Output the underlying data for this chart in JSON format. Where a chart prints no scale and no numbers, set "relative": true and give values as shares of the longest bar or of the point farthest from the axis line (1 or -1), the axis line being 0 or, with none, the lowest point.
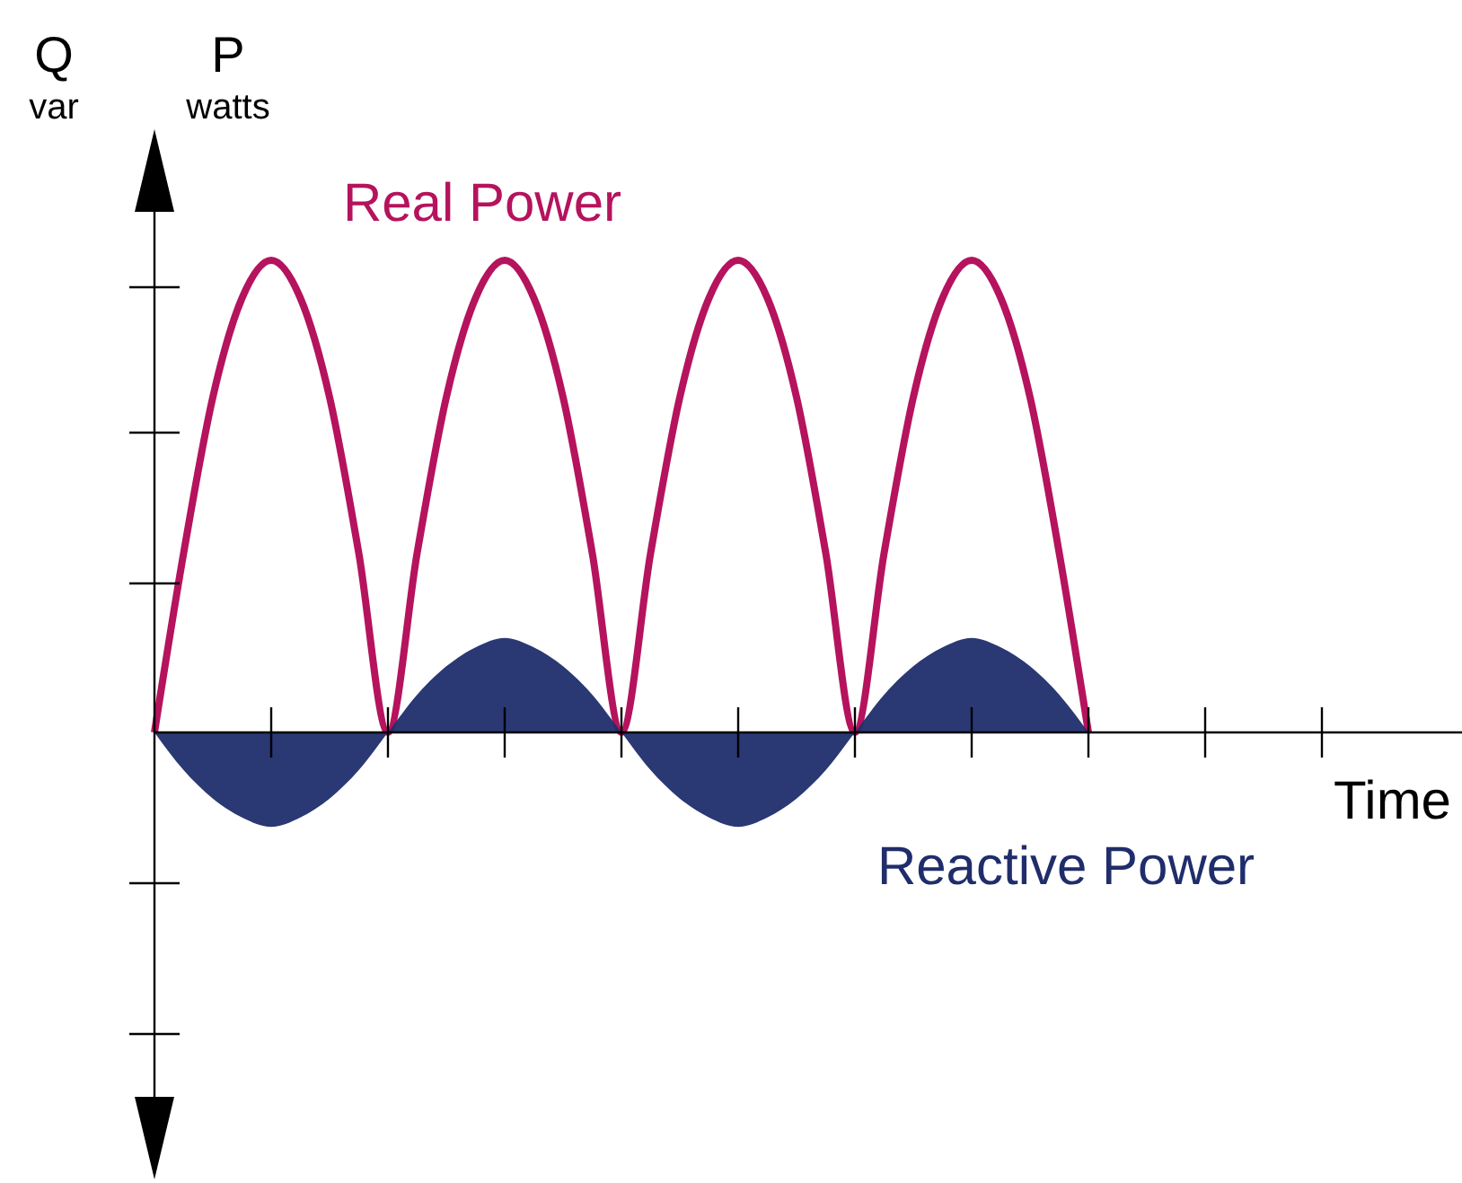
{
  "chart_data": {
    "type": "line",
    "relative": true,
    "xlabel": "Time",
    "ylabel": "P watts",
    "annotations": [
      "Q var"
    ],
    "categories": [
      null,
      null,
      null,
      null,
      null,
      null,
      null,
      null,
      null,
      null,
      null,
      null,
      null,
      null,
      null,
      null,
      null,
      null,
      null,
      null,
      null,
      null,
      null,
      null,
      null,
      null,
      null,
      null,
      null,
      null,
      null,
      null,
      null,
      null,
      null,
      null,
      null,
      null,
      null,
      null,
      null,
      null,
      null,
      null
    ],
    "series": [
      {
        "name": "Real Power",
        "color": "#b5135d",
        "values": [
          0,
          0.38,
          0.71,
          0.92,
          1,
          0.92,
          0.71,
          0.38,
          0,
          0.38,
          0.71,
          0.92,
          1,
          0.92,
          0.71,
          0.38,
          0,
          0.38,
          0.71,
          0.92,
          1,
          0.92,
          0.71,
          0.38,
          0,
          0.38,
          0.71,
          0.92,
          1,
          0.92,
          0.71,
          0.38,
          0,
          null,
          null,
          null,
          null,
          null,
          null,
          null,
          null,
          null,
          null,
          null
        ]
      },
      {
        "name": "Reactive Power",
        "type": "area",
        "color": "#1f2d6b",
        "values": [
          0,
          -0.08,
          -0.14,
          -0.18,
          -0.2,
          -0.18,
          -0.14,
          -0.08,
          0,
          0.08,
          0.14,
          0.18,
          0.2,
          0.18,
          0.14,
          0.08,
          0,
          -0.08,
          -0.14,
          -0.18,
          -0.2,
          -0.18,
          -0.14,
          -0.08,
          0,
          0.08,
          0.14,
          0.18,
          0.2,
          0.18,
          0.14,
          0.08,
          0,
          null,
          null,
          null,
          null,
          null,
          null,
          null,
          null,
          null,
          null,
          null
        ]
      }
    ]
  }
}
